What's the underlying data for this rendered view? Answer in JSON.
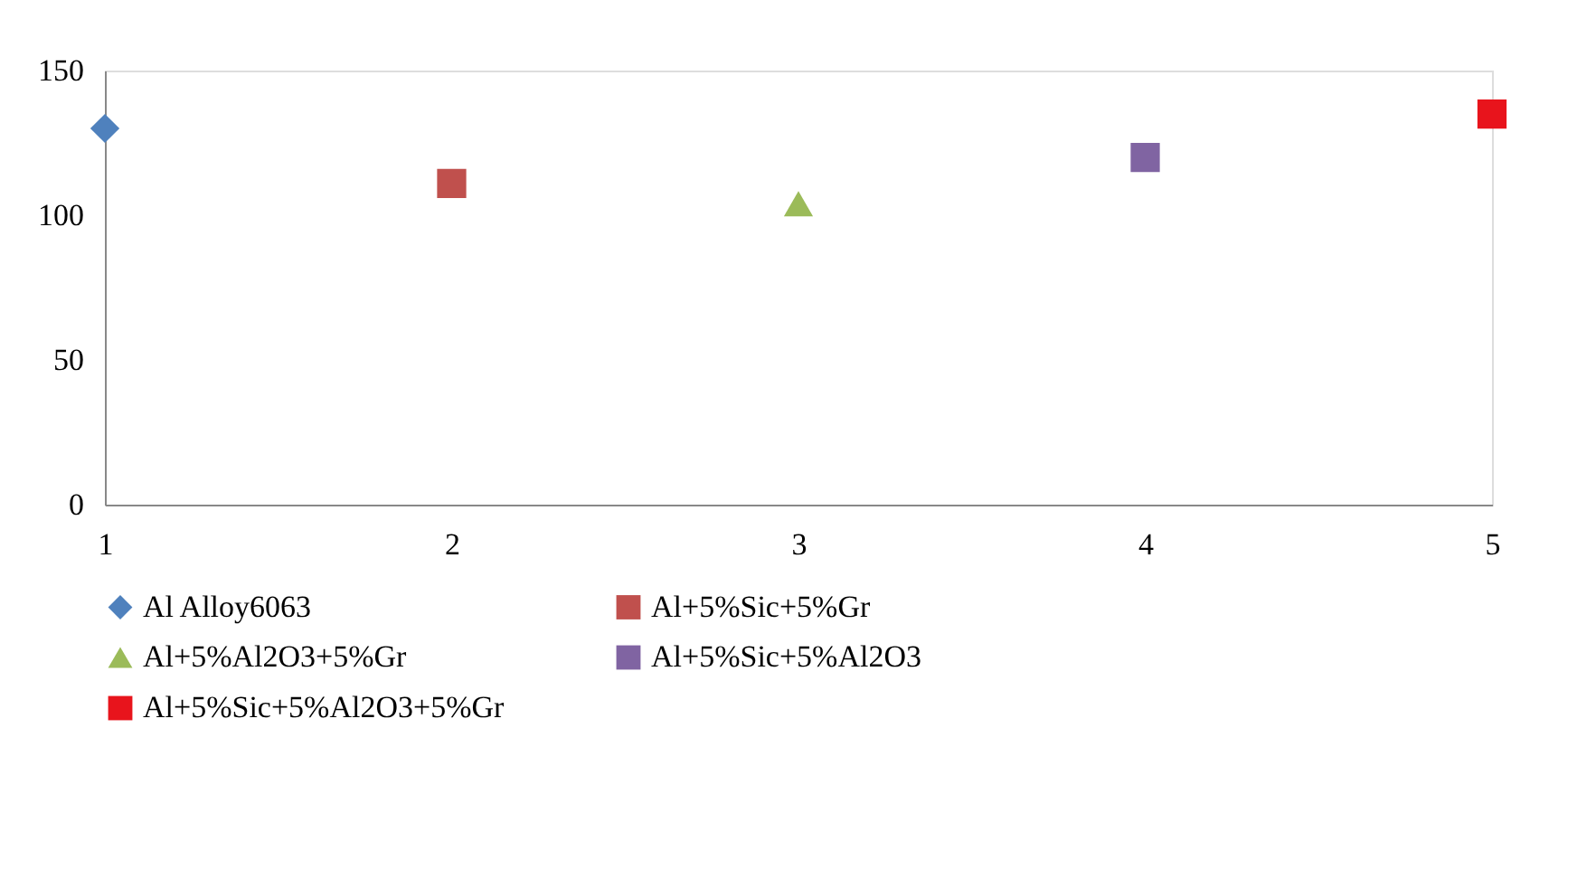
{
  "chart_data": {
    "type": "scatter",
    "xlim": [
      1,
      5
    ],
    "xticks": [
      1,
      2,
      3,
      4,
      5
    ],
    "ylim": [
      0,
      150
    ],
    "yticks": [
      0,
      50,
      100,
      150
    ],
    "grid": false,
    "legend": "bottom",
    "series": [
      {
        "name": "Al Alloy6063",
        "color": "#4f81bd",
        "x": [
          1
        ],
        "values": [
          130
        ],
        "marker": "diamond"
      },
      {
        "name": "Al+5%Sic+5%Gr",
        "color": "#c0504d",
        "x": [
          2
        ],
        "values": [
          111
        ],
        "marker": "square"
      },
      {
        "name": "Al+5%Al2O3+5%Gr",
        "color": "#9bbb59",
        "x": [
          3
        ],
        "values": [
          104
        ],
        "marker": "triangle"
      },
      {
        "name": "Al+5%Sic+5%Al2O3",
        "color": "#8064a2",
        "x": [
          4
        ],
        "values": [
          120
        ],
        "marker": "square"
      },
      {
        "name": "Al+5%Sic+5%Al2O3+5%Gr",
        "color": "#e8141c",
        "x": [
          5
        ],
        "values": [
          135
        ],
        "marker": "square"
      }
    ]
  }
}
